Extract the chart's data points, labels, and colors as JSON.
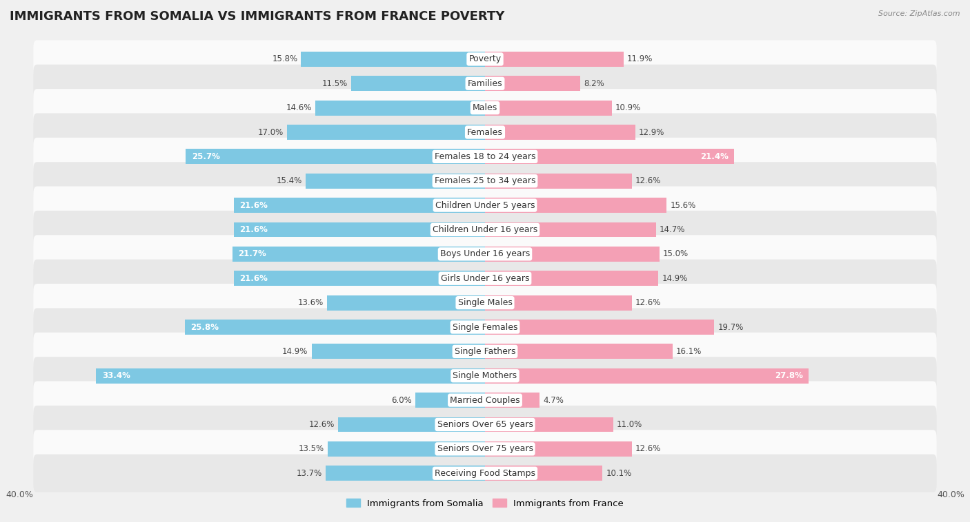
{
  "title": "IMMIGRANTS FROM SOMALIA VS IMMIGRANTS FROM FRANCE POVERTY",
  "source": "Source: ZipAtlas.com",
  "categories": [
    "Poverty",
    "Families",
    "Males",
    "Females",
    "Females 18 to 24 years",
    "Females 25 to 34 years",
    "Children Under 5 years",
    "Children Under 16 years",
    "Boys Under 16 years",
    "Girls Under 16 years",
    "Single Males",
    "Single Females",
    "Single Fathers",
    "Single Mothers",
    "Married Couples",
    "Seniors Over 65 years",
    "Seniors Over 75 years",
    "Receiving Food Stamps"
  ],
  "somalia_values": [
    15.8,
    11.5,
    14.6,
    17.0,
    25.7,
    15.4,
    21.6,
    21.6,
    21.7,
    21.6,
    13.6,
    25.8,
    14.9,
    33.4,
    6.0,
    12.6,
    13.5,
    13.7
  ],
  "france_values": [
    11.9,
    8.2,
    10.9,
    12.9,
    21.4,
    12.6,
    15.6,
    14.7,
    15.0,
    14.9,
    12.6,
    19.7,
    16.1,
    27.8,
    4.7,
    11.0,
    12.6,
    10.1
  ],
  "somalia_color": "#7ec8e3",
  "france_color": "#f4a0b5",
  "background_color": "#f0f0f0",
  "row_color_light": "#fafafa",
  "row_color_dark": "#e8e8e8",
  "xlim": 40.0,
  "bar_height": 0.62,
  "label_fontsize": 9,
  "value_fontsize": 8.5,
  "title_fontsize": 13,
  "legend_somalia": "Immigrants from Somalia",
  "legend_france": "Immigrants from France"
}
